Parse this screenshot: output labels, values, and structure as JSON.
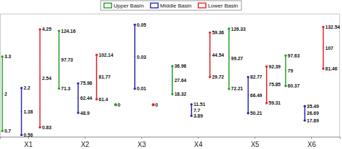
{
  "chart_data": {
    "type": "range",
    "categories": [
      "X1",
      "X2",
      "X3",
      "X4",
      "X5",
      "X6"
    ],
    "ylims": [
      [
        0.5,
        4.8
      ],
      [
        27,
        140
      ],
      [
        -0.02,
        0.057
      ],
      [
        -10,
        72
      ],
      [
        29,
        140
      ],
      [
        -2,
        149
      ]
    ],
    "series": [
      {
        "name": "Upper Basin",
        "color": "#2ca02c",
        "min": [
          0.7,
          71.3,
          0,
          18.32,
          72.21,
          60.37
        ],
        "mean": [
          2,
          97.73,
          0,
          27.64,
          99.27,
          79
        ],
        "max": [
          3.3,
          124.16,
          0,
          36.96,
          126.33,
          97.63
        ]
      },
      {
        "name": "Middle Basin",
        "color": "#2b2bb8",
        "min": [
          0.56,
          48.9,
          0.01,
          3.89,
          50.21,
          17.89
        ],
        "mean": [
          1.38,
          62.44,
          0.03,
          7.7,
          66.49,
          26.69
        ],
        "max": [
          2.2,
          75.98,
          0.05,
          11.51,
          82.77,
          35.49
        ]
      },
      {
        "name": "Lower Basin",
        "color": "#e0262b",
        "min": [
          0.83,
          61.4,
          0,
          29.72,
          59.31,
          81.46
        ],
        "mean": [
          2.54,
          81.77,
          0,
          44.54,
          75.85,
          107
        ],
        "max": [
          4.25,
          102.14,
          0,
          59.36,
          92.39,
          132.54
        ]
      }
    ],
    "legend": "top",
    "data_labels": true,
    "tick_labels": "x",
    "grid": false
  }
}
